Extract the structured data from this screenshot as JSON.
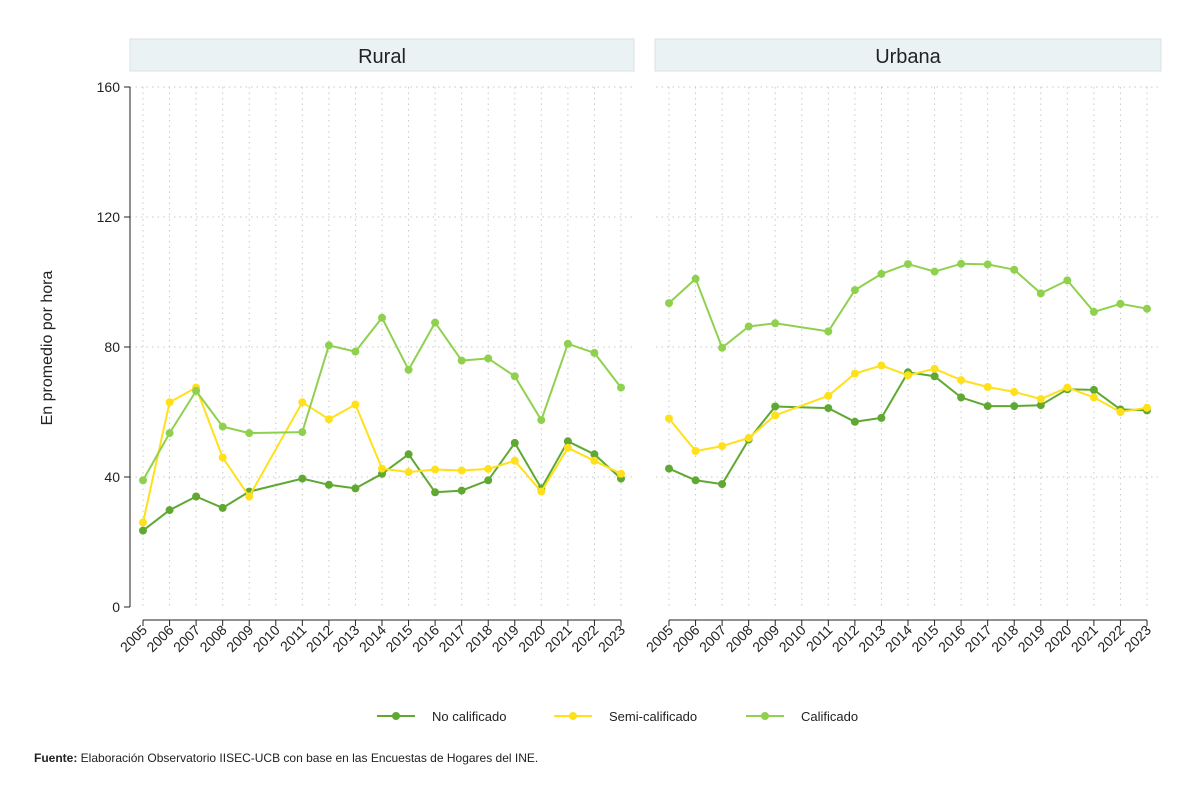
{
  "chart_data": {
    "type": "line",
    "ylabel": "En promedio por hora",
    "ylim": [
      0,
      160
    ],
    "yticks": [
      0,
      40,
      80,
      120,
      160
    ],
    "grid": true,
    "legend_position": "bottom",
    "colors": {
      "No calificado": "#5fa832",
      "Semi-calificado": "#ffe01a",
      "Calificado": "#8fd14f"
    },
    "legend": [
      "No calificado",
      "Semi-calificado",
      "Calificado"
    ],
    "panels": [
      {
        "title": "Rural",
        "x": [
          "2005",
          "2006",
          "2007",
          "2008",
          "2009",
          "2010",
          "2011",
          "2012",
          "2013",
          "2014",
          "2015",
          "2016",
          "2017",
          "2018",
          "2019",
          "2020",
          "2021",
          "2022",
          "2023"
        ],
        "series": [
          {
            "name": "No calificado",
            "values": [
              23.5,
              29.8,
              34,
              30.5,
              35.5,
              null,
              39.5,
              37.6,
              36.5,
              41,
              47,
              35.3,
              35.8,
              39,
              50.5,
              36.5,
              51,
              47,
              39.5
            ]
          },
          {
            "name": "Semi-calificado",
            "values": [
              26,
              63,
              67.5,
              46,
              34,
              null,
              63,
              57.8,
              62.3,
              42.6,
              41.5,
              42.3,
              42,
              42.5,
              45,
              35.5,
              49,
              45,
              41
            ]
          },
          {
            "name": "Calificado",
            "values": [
              39,
              53.5,
              66.5,
              55.5,
              53.5,
              null,
              53.8,
              80.5,
              78.6,
              89,
              73,
              87.5,
              75.8,
              76.5,
              71,
              57.5,
              81,
              78.2,
              67.5
            ]
          }
        ]
      },
      {
        "title": "Urbana",
        "x": [
          "2005",
          "2006",
          "2007",
          "2008",
          "2009",
          "2010",
          "2011",
          "2012",
          "2013",
          "2014",
          "2015",
          "2016",
          "2017",
          "2018",
          "2019",
          "2020",
          "2021",
          "2022",
          "2023"
        ],
        "series": [
          {
            "name": "No calificado",
            "values": [
              42.6,
              39,
              37.8,
              51.5,
              61.7,
              null,
              61.2,
              57,
              58.2,
              72.2,
              71,
              64.5,
              61.8,
              61.8,
              62.1,
              67,
              66.8,
              60.8,
              60.5
            ]
          },
          {
            "name": "Semi-calificado",
            "values": [
              58,
              48,
              49.5,
              52,
              59,
              null,
              65,
              71.8,
              74.3,
              71.3,
              73.3,
              69.8,
              67.7,
              66.2,
              64,
              67.5,
              64.5,
              60,
              61.3
            ]
          },
          {
            "name": "Calificado",
            "values": [
              93.5,
              101,
              79.8,
              86.3,
              87.3,
              null,
              84.8,
              97.5,
              102.5,
              105.5,
              103.2,
              105.6,
              105.4,
              103.8,
              96.5,
              100.5,
              90.8,
              93.3,
              91.8
            ]
          }
        ]
      }
    ]
  },
  "source": {
    "label": "Fuente:",
    "text": " Elaboración Observatorio IISEC-UCB con base en las Encuestas de Hogares del INE."
  }
}
